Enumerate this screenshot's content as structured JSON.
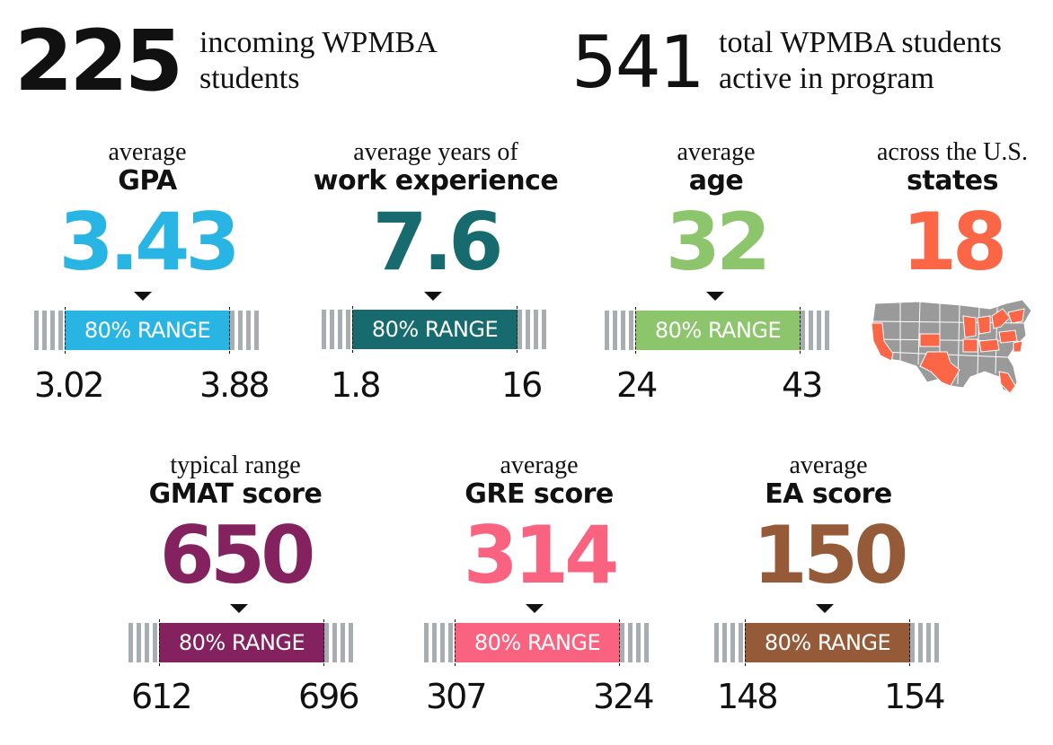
{
  "hero": [
    {
      "number": "225",
      "text_line1": "incoming WPMBA",
      "text_line2": "students"
    },
    {
      "number": "541",
      "text_line1": "total WPMBA students",
      "text_line2": "active in program"
    }
  ],
  "range_label": "80% RANGE",
  "stats": [
    {
      "top": "average",
      "bold": "GPA",
      "value": "3.43",
      "color": "#29b5e3",
      "low": "3.02",
      "high": "3.88"
    },
    {
      "top": "average years of",
      "bold": "work experience",
      "value": "7.6",
      "color": "#176b6e",
      "low": "1.8",
      "high": "16"
    },
    {
      "top": "average",
      "bold": "age",
      "value": "32",
      "color": "#8cc56c",
      "low": "24",
      "high": "43"
    },
    {
      "top": "across the U.S.",
      "bold": "states",
      "value": "18",
      "color": "#fb6647"
    },
    {
      "top": "typical range",
      "bold": "GMAT score",
      "value": "650",
      "color": "#84215f",
      "low": "612",
      "high": "696"
    },
    {
      "top": "average",
      "bold": "GRE score",
      "value": "314",
      "color": "#fa6380",
      "low": "307",
      "high": "324"
    },
    {
      "top": "average",
      "bold": "EA score",
      "value": "150",
      "color": "#955a38",
      "low": "148",
      "high": "154"
    }
  ],
  "map": {
    "icon": "us-states-map-icon",
    "highlight_color": "#fb6647",
    "base_color": "#9a9a9a"
  }
}
